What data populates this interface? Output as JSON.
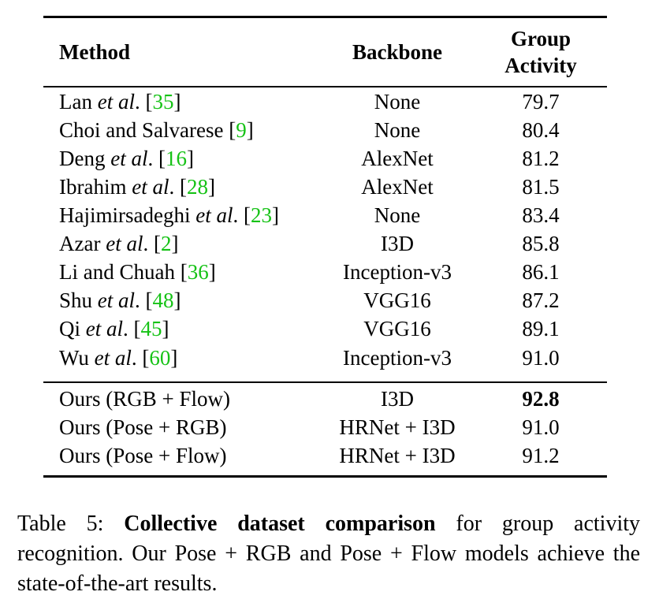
{
  "table": {
    "headers": {
      "method": "Method",
      "backbone": "Backbone",
      "score_line1": "Group",
      "score_line2": "Activity"
    },
    "rows": [
      {
        "name": "Lan",
        "etal": "et al",
        "tail": ". [",
        "ref": "35",
        "close": "]",
        "backbone": "None",
        "score": "79.7"
      },
      {
        "name": "Choi and Salvarese [",
        "etal": "",
        "tail": "",
        "ref": "9",
        "close": "]",
        "backbone": "None",
        "score": "80.4"
      },
      {
        "name": "Deng",
        "etal": "et al",
        "tail": ". [",
        "ref": "16",
        "close": "]",
        "backbone": "AlexNet",
        "score": "81.2"
      },
      {
        "name": "Ibrahim",
        "etal": "et al",
        "tail": ". [",
        "ref": "28",
        "close": "]",
        "backbone": "AlexNet",
        "score": "81.5"
      },
      {
        "name": "Hajimirsadeghi",
        "etal": "et al",
        "tail": ". [",
        "ref": "23",
        "close": "]",
        "backbone": "None",
        "score": "83.4"
      },
      {
        "name": "Azar",
        "etal": "et al",
        "tail": ". [",
        "ref": "2",
        "close": "]",
        "backbone": "I3D",
        "score": "85.8"
      },
      {
        "name": "Li and Chuah [",
        "etal": "",
        "tail": "",
        "ref": "36",
        "close": "]",
        "backbone": "Inception-v3",
        "score": "86.1"
      },
      {
        "name": "Shu",
        "etal": "et al",
        "tail": ". [",
        "ref": "48",
        "close": "]",
        "backbone": "VGG16",
        "score": "87.2"
      },
      {
        "name": "Qi",
        "etal": "et al",
        "tail": ". [",
        "ref": "45",
        "close": "]",
        "backbone": "VGG16",
        "score": "89.1"
      },
      {
        "name": "Wu",
        "etal": "et al",
        "tail": ". [",
        "ref": "60",
        "close": "]",
        "backbone": "Inception-v3",
        "score": "91.0"
      }
    ],
    "ours": [
      {
        "name": "Ours (RGB + Flow)",
        "backbone": "I3D",
        "score": "92.8"
      },
      {
        "name": "Ours (Pose + RGB)",
        "backbone": "HRNet + I3D",
        "score": "91.0"
      },
      {
        "name": "Ours (Pose + Flow)",
        "backbone": "HRNet + I3D",
        "score": "91.2"
      }
    ]
  },
  "caption": {
    "label": "Table 5:",
    "bold": "Collective dataset comparison",
    "rest": "for group activity recognition. Our Pose + RGB and Pose + Flow models achieve the state-of-the-art results."
  },
  "colors": {
    "reference": "#16c216",
    "text": "#000000"
  }
}
